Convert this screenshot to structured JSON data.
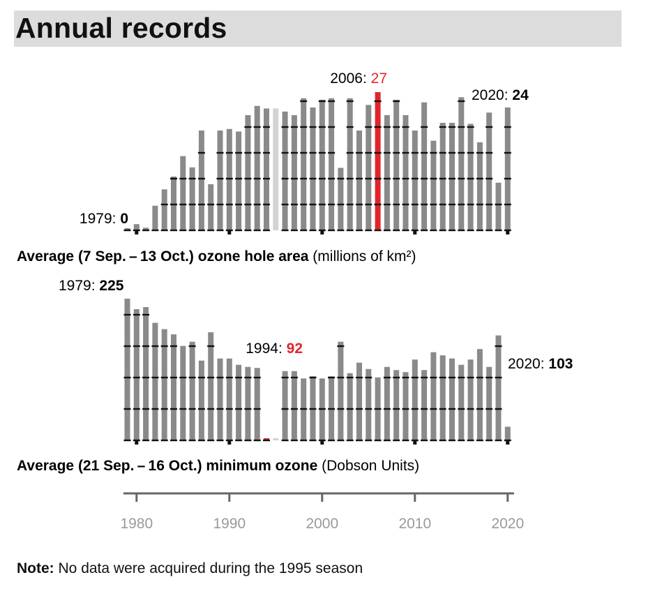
{
  "title": "Annual records",
  "note": {
    "label": "Note:",
    "text": "No data were acquired during the 1995 season"
  },
  "colors": {
    "bar": "#8a8a8a",
    "highlight": "#e0262b",
    "missing": "#d3d3d3",
    "grid": "#111111",
    "axis": "#666666",
    "tick_label": "#9a9a9a"
  },
  "x_axis": {
    "tick_labels": [
      "1980",
      "1990",
      "2000",
      "2010",
      "2020"
    ],
    "tick_values": [
      1980,
      1990,
      2000,
      2010,
      2020
    ],
    "range": [
      1979,
      2020
    ]
  },
  "chart_data": [
    {
      "type": "bar",
      "caption_bold": "Average (7 Sep. – 13 Oct.) ozone hole area",
      "caption_units": "(millions of km²)",
      "ylim": [
        0,
        27
      ],
      "grid": true,
      "missing_year": 1995,
      "highlight_year": 2006,
      "x": [
        1979,
        1980,
        1981,
        1982,
        1983,
        1984,
        1985,
        1986,
        1987,
        1988,
        1989,
        1990,
        1991,
        1992,
        1993,
        1994,
        1995,
        1996,
        1997,
        1998,
        1999,
        2000,
        2001,
        2002,
        2003,
        2004,
        2005,
        2006,
        2007,
        2008,
        2009,
        2010,
        2011,
        2012,
        2013,
        2014,
        2015,
        2016,
        2017,
        2018,
        2019,
        2020
      ],
      "values": [
        0.1,
        1.2,
        0.5,
        4.8,
        8.0,
        10.5,
        14.5,
        12.3,
        19.5,
        9.0,
        19.5,
        19.8,
        19.3,
        22.5,
        24.3,
        23.8,
        null,
        23.2,
        22.5,
        25.8,
        24.0,
        25.5,
        25.8,
        12.2,
        25.8,
        19.5,
        24.5,
        27,
        22.5,
        25.5,
        22.5,
        19.5,
        25.0,
        17.5,
        21.0,
        21.0,
        26.0,
        20.8,
        17.2,
        23.0,
        9.3,
        24
      ],
      "annotations": [
        {
          "year_label": "1979:",
          "value_label": "0"
        },
        {
          "year_label": "2006:",
          "value_label": "27"
        },
        {
          "year_label": "2020:",
          "value_label": "24"
        }
      ]
    },
    {
      "type": "bar",
      "caption_bold": "Average (21 Sep. – 16 Oct.) minimum ozone",
      "caption_units": "(Dobson Units)",
      "ylim": [
        90,
        225
      ],
      "grid": true,
      "missing_year": 1995,
      "highlight_year": 1994,
      "x": [
        1979,
        1980,
        1981,
        1982,
        1983,
        1984,
        1985,
        1986,
        1987,
        1988,
        1989,
        1990,
        1991,
        1992,
        1993,
        1994,
        1995,
        1996,
        1997,
        1998,
        1999,
        2000,
        2001,
        2002,
        2003,
        2004,
        2005,
        2006,
        2007,
        2008,
        2009,
        2010,
        2011,
        2012,
        2013,
        2014,
        2015,
        2016,
        2017,
        2018,
        2019,
        2020
      ],
      "values": [
        225,
        215,
        217,
        202,
        196,
        191,
        180,
        184,
        166,
        193,
        168,
        168,
        162,
        160,
        159,
        92,
        null,
        156,
        156,
        149,
        151,
        149,
        151,
        184,
        154,
        164,
        158,
        150,
        160,
        157,
        155,
        167,
        157,
        174,
        171,
        168,
        162,
        167,
        177,
        160,
        190,
        103
      ],
      "annotations": [
        {
          "year_label": "1979:",
          "value_label": "225"
        },
        {
          "year_label": "1994:",
          "value_label": "92"
        },
        {
          "year_label": "2020:",
          "value_label": "103"
        }
      ]
    }
  ]
}
